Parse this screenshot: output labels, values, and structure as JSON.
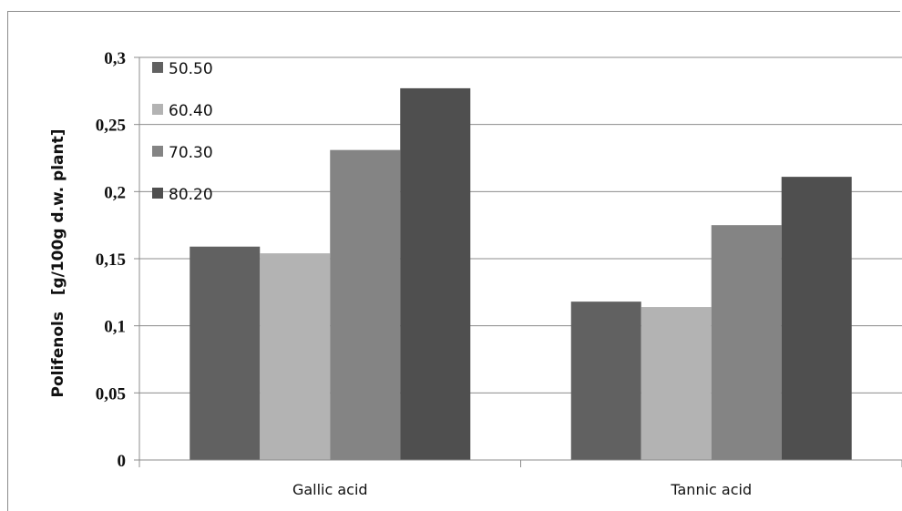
{
  "chart_data": {
    "type": "bar",
    "title": "",
    "xlabel": "",
    "ylabel": "Polifenols   [g/100g d.w. plant]",
    "categories": [
      "Gallic acid",
      "Tannic acid"
    ],
    "series": [
      {
        "name": "50.50",
        "values": [
          0.159,
          0.118
        ],
        "color": "#616161"
      },
      {
        "name": "60.40",
        "values": [
          0.154,
          0.114
        ],
        "color": "#b3b3b3"
      },
      {
        "name": "70.30",
        "values": [
          0.231,
          0.175
        ],
        "color": "#848484"
      },
      {
        "name": "80.20",
        "values": [
          0.277,
          0.211
        ],
        "color": "#4f4f4f"
      }
    ],
    "ylim": [
      0,
      0.3
    ],
    "yticks": [
      0,
      0.05,
      0.1,
      0.15,
      0.2,
      0.25,
      0.3
    ],
    "ytick_labels": [
      "0",
      "0,05",
      "0,1",
      "0,15",
      "0,2",
      "0,25",
      "0,3"
    ],
    "grid": true,
    "legend_position": "top-left"
  }
}
